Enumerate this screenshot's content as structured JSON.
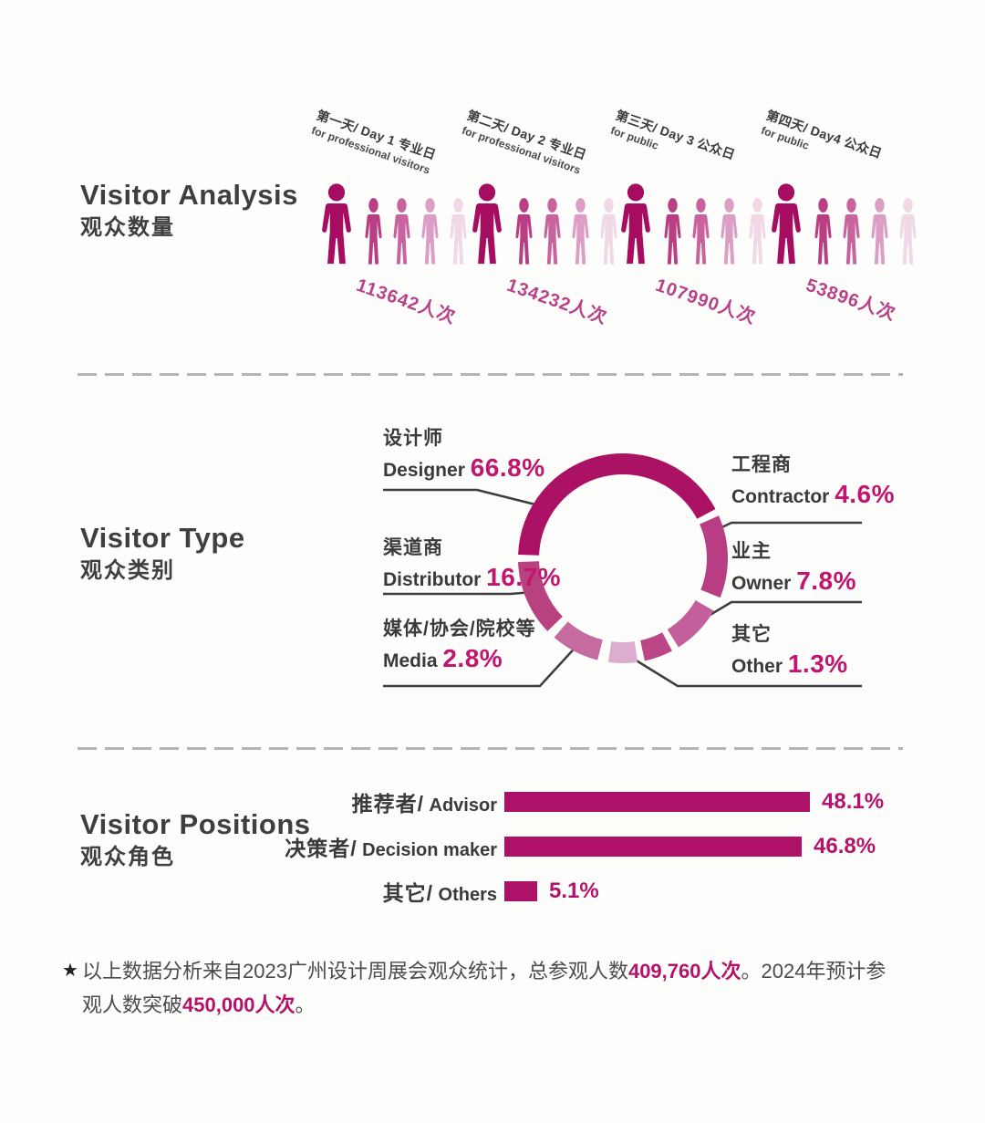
{
  "colors": {
    "magenta_dark": "#a60d61",
    "magenta_percent": "#c2156f",
    "magenta_bar": "#ae1168",
    "magenta_count": "#b8418a",
    "text_dark": "#3c3c3c",
    "leader_line": "#3d3d3d",
    "dash_gray": "#b4b4b4"
  },
  "visitor_analysis": {
    "title_en": "Visitor Analysis",
    "title_cn": "观众数量",
    "icon_colors": {
      "large": "#a60d61",
      "small": [
        "#b93e84",
        "#c9639e",
        "#dc9ec4",
        "#f0d8e7"
      ]
    },
    "days": [
      {
        "label": "第一天/ Day 1 专业日",
        "sublabel": "for professional visitors",
        "count": "113642人次",
        "visitors": 113642
      },
      {
        "label": "第二天/ Day 2 专业日",
        "sublabel": "for professional visitors",
        "count": "134232人次",
        "visitors": 134232
      },
      {
        "label": "第三天/ Day 3 公众日",
        "sublabel": "for public",
        "count": "107990人次",
        "visitors": 107990
      },
      {
        "label": "第四天/ Day4 公众日",
        "sublabel": "for public",
        "count": "53896人次",
        "visitors": 53896
      }
    ]
  },
  "visitor_type": {
    "title_en": "Visitor Type",
    "title_cn": "观众类别",
    "items": [
      {
        "cn": "设计师",
        "en": "Designer",
        "pct": "66.8%",
        "value": 66.8,
        "side": "left"
      },
      {
        "cn": "渠道商",
        "en": "Distributor",
        "pct": "16.7%",
        "value": 16.7,
        "side": "left"
      },
      {
        "cn": "媒体/协会/院校等",
        "en": "Media",
        "pct": "2.8%",
        "value": 2.8,
        "side": "left"
      },
      {
        "cn": "工程商",
        "en": "Contractor",
        "pct": "4.6%",
        "value": 4.6,
        "side": "right"
      },
      {
        "cn": "业主",
        "en": "Owner",
        "pct": "7.8%",
        "value": 7.8,
        "side": "right"
      },
      {
        "cn": "其它",
        "en": "Other",
        "pct": "1.3%",
        "value": 1.3,
        "side": "right"
      }
    ]
  },
  "visitor_positions": {
    "title_en": "Visitor Positions",
    "title_cn": "观众角色",
    "rows": [
      {
        "cn": "推荐者/",
        "en": " Advisor",
        "pct": "48.1%",
        "value": 48.1
      },
      {
        "cn": "决策者/",
        "en": " Decision maker",
        "pct": "46.8%",
        "value": 46.8
      },
      {
        "cn": "其它/",
        "en": " Others",
        "pct": "5.1%",
        "value": 5.1
      }
    ]
  },
  "footnote": {
    "star": "★",
    "part1": "以上数据分析来自2023广州设计周展会观众统计，总参观人数",
    "bold1": "409,760人次",
    "part2": "。2024年预计参观人数突破",
    "bold2": "450,000人次",
    "part3": "。"
  },
  "chart_data": [
    {
      "type": "pictogram",
      "title": "Visitor Analysis 观众数量",
      "categories": [
        "第一天/ Day 1 专业日 for professional visitors",
        "第二天/ Day 2 专业日 for professional visitors",
        "第三天/ Day 3 公众日 for public",
        "第四天/ Day4 公众日 for public"
      ],
      "values": [
        113642,
        134232,
        107990,
        53896
      ],
      "unit": "人次",
      "icons_per_group": 5
    },
    {
      "type": "pie",
      "donut": true,
      "title": "Visitor Type 观众类别",
      "labels": [
        "设计师 Designer",
        "渠道商 Distributor",
        "媒体/协会/院校等 Media",
        "工程商 Contractor",
        "业主 Owner",
        "其它 Other"
      ],
      "values": [
        66.8,
        16.7,
        2.8,
        4.6,
        7.8,
        1.3
      ],
      "unit": "%",
      "legend_position": "both-sides",
      "display_arcs": [
        {
          "start": 272,
          "end": 422,
          "color": "#ab1264",
          "label": "Designer"
        },
        {
          "start": 66,
          "end": 112,
          "color": "#b73e82",
          "label": "Contractor"
        },
        {
          "start": 120,
          "end": 148,
          "color": "#c45f9b",
          "label": "Owner"
        },
        {
          "start": 152,
          "end": 168,
          "color": "#bb4787",
          "label": ""
        },
        {
          "start": 172,
          "end": 188,
          "color": "#dcadce",
          "label": "Other"
        },
        {
          "start": 194,
          "end": 221,
          "color": "#c56b9f",
          "label": "Media"
        },
        {
          "start": 226,
          "end": 268,
          "color": "#b8417f",
          "label": "Distributor"
        }
      ]
    },
    {
      "type": "bar",
      "orientation": "horizontal",
      "title": "Visitor Positions 观众角色",
      "categories": [
        "推荐者/ Advisor",
        "决策者/ Decision maker",
        "其它/ Others"
      ],
      "values": [
        48.1,
        46.8,
        5.1
      ],
      "unit": "%",
      "xlim": [
        0,
        50
      ]
    }
  ]
}
